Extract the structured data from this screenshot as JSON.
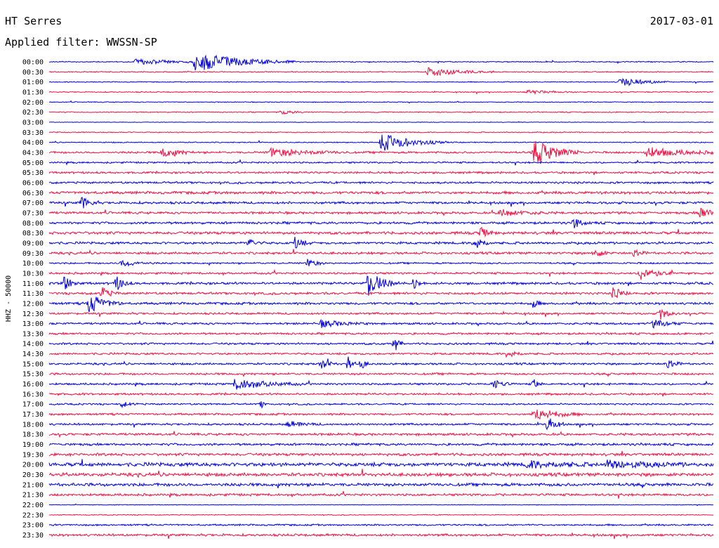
{
  "header": {
    "station": "HT Serres",
    "date": "2017-03-01",
    "filter_label": "Applied filter: WWSSN-SP"
  },
  "chart_data": {
    "type": "line",
    "title": "HT Serres",
    "date": "2017-03-01",
    "filter": "WWSSN-SP",
    "channel_label": "HHZ - 50000",
    "row_labels": [
      "00:00",
      "00:30",
      "01:00",
      "01:30",
      "02:00",
      "02:30",
      "03:00",
      "03:30",
      "04:00",
      "04:30",
      "05:00",
      "05:30",
      "06:00",
      "06:30",
      "07:00",
      "07:30",
      "08:00",
      "08:30",
      "09:00",
      "09:30",
      "10:00",
      "10:30",
      "11:00",
      "11:30",
      "12:00",
      "12:30",
      "13:00",
      "13:30",
      "14:00",
      "14:30",
      "15:00",
      "15:30",
      "16:00",
      "16:30",
      "17:00",
      "17:30",
      "18:00",
      "18:30",
      "19:00",
      "19:30",
      "20:00",
      "20:30",
      "21:00",
      "21:30",
      "22:00",
      "22:30",
      "23:00",
      "23:30"
    ],
    "colors": {
      "even_rows": "#0000dd",
      "odd_rows": "#ee1144"
    },
    "row_noise": [
      0.6,
      0.6,
      0.5,
      0.6,
      0.5,
      0.6,
      0.3,
      0.6,
      0.6,
      1.2,
      1.0,
      1.2,
      1.2,
      1.6,
      1.4,
      1.4,
      1.4,
      1.6,
      1.4,
      1.4,
      1.0,
      1.2,
      1.4,
      1.4,
      1.4,
      1.2,
      1.2,
      1.2,
      1.2,
      1.2,
      1.2,
      1.2,
      1.2,
      1.2,
      1.0,
      1.2,
      1.2,
      1.4,
      1.4,
      1.6,
      2.2,
      2.0,
      1.8,
      1.4,
      0.4,
      0.5,
      1.0,
      1.4
    ],
    "events": [
      {
        "row": 0,
        "t": 0.22,
        "amp": 14,
        "dur": 0.06
      },
      {
        "row": 0,
        "t": 0.13,
        "amp": 4,
        "dur": 0.05
      },
      {
        "row": 1,
        "t": 0.57,
        "amp": 7,
        "dur": 0.04
      },
      {
        "row": 2,
        "t": 0.86,
        "amp": 7,
        "dur": 0.03
      },
      {
        "row": 3,
        "t": 0.72,
        "amp": 3,
        "dur": 0.03
      },
      {
        "row": 5,
        "t": 0.35,
        "amp": 3,
        "dur": 0.02
      },
      {
        "row": 8,
        "t": 0.5,
        "amp": 13,
        "dur": 0.04
      },
      {
        "row": 9,
        "t": 0.73,
        "amp": 18,
        "dur": 0.03
      },
      {
        "row": 9,
        "t": 0.17,
        "amp": 7,
        "dur": 0.02
      },
      {
        "row": 9,
        "t": 0.33,
        "amp": 6,
        "dur": 0.05
      },
      {
        "row": 9,
        "t": 0.9,
        "amp": 7,
        "dur": 0.05
      },
      {
        "row": 14,
        "t": 0.05,
        "amp": 10,
        "dur": 0.01
      },
      {
        "row": 15,
        "t": 0.98,
        "amp": 11,
        "dur": 0.01
      },
      {
        "row": 15,
        "t": 0.68,
        "amp": 5,
        "dur": 0.03
      },
      {
        "row": 16,
        "t": 0.79,
        "amp": 8,
        "dur": 0.01
      },
      {
        "row": 17,
        "t": 0.65,
        "amp": 7,
        "dur": 0.01
      },
      {
        "row": 18,
        "t": 0.3,
        "amp": 6,
        "dur": 0.01
      },
      {
        "row": 18,
        "t": 0.37,
        "amp": 8,
        "dur": 0.01
      },
      {
        "row": 18,
        "t": 0.64,
        "amp": 12,
        "dur": 0.01
      },
      {
        "row": 19,
        "t": 0.82,
        "amp": 8,
        "dur": 0.01
      },
      {
        "row": 19,
        "t": 0.88,
        "amp": 7,
        "dur": 0.01
      },
      {
        "row": 20,
        "t": 0.11,
        "amp": 5,
        "dur": 0.02
      },
      {
        "row": 20,
        "t": 0.39,
        "amp": 7,
        "dur": 0.01
      },
      {
        "row": 21,
        "t": 0.89,
        "amp": 10,
        "dur": 0.02
      },
      {
        "row": 22,
        "t": 0.02,
        "amp": 14,
        "dur": 0.01
      },
      {
        "row": 22,
        "t": 0.1,
        "amp": 11,
        "dur": 0.01
      },
      {
        "row": 22,
        "t": 0.48,
        "amp": 18,
        "dur": 0.02
      },
      {
        "row": 22,
        "t": 0.55,
        "amp": 11,
        "dur": 0.005
      },
      {
        "row": 23,
        "t": 0.08,
        "amp": 8,
        "dur": 0.01
      },
      {
        "row": 23,
        "t": 0.85,
        "amp": 10,
        "dur": 0.01
      },
      {
        "row": 24,
        "t": 0.06,
        "amp": 14,
        "dur": 0.02
      },
      {
        "row": 24,
        "t": 0.73,
        "amp": 9,
        "dur": 0.005
      },
      {
        "row": 25,
        "t": 0.92,
        "amp": 9,
        "dur": 0.01
      },
      {
        "row": 26,
        "t": 0.41,
        "amp": 5,
        "dur": 0.03
      },
      {
        "row": 26,
        "t": 0.91,
        "amp": 5,
        "dur": 0.02
      },
      {
        "row": 28,
        "t": 0.52,
        "amp": 13,
        "dur": 0.005
      },
      {
        "row": 29,
        "t": 0.69,
        "amp": 7,
        "dur": 0.01
      },
      {
        "row": 30,
        "t": 0.41,
        "amp": 7,
        "dur": 0.01
      },
      {
        "row": 30,
        "t": 0.45,
        "amp": 11,
        "dur": 0.005
      },
      {
        "row": 30,
        "t": 0.47,
        "amp": 9,
        "dur": 0.005
      },
      {
        "row": 30,
        "t": 0.93,
        "amp": 10,
        "dur": 0.01
      },
      {
        "row": 32,
        "t": 0.28,
        "amp": 8,
        "dur": 0.04
      },
      {
        "row": 32,
        "t": 0.67,
        "amp": 8,
        "dur": 0.01
      },
      {
        "row": 32,
        "t": 0.73,
        "amp": 8,
        "dur": 0.005
      },
      {
        "row": 34,
        "t": 0.32,
        "amp": 5,
        "dur": 0.003
      },
      {
        "row": 34,
        "t": 0.11,
        "amp": 4,
        "dur": 0.01
      },
      {
        "row": 35,
        "t": 0.73,
        "amp": 9,
        "dur": 0.03
      },
      {
        "row": 36,
        "t": 0.75,
        "amp": 12,
        "dur": 0.01
      },
      {
        "row": 36,
        "t": 0.36,
        "amp": 4,
        "dur": 0.02
      },
      {
        "row": 40,
        "t": 0.72,
        "amp": 5,
        "dur": 0.04
      },
      {
        "row": 40,
        "t": 0.84,
        "amp": 5,
        "dur": 0.05
      }
    ]
  }
}
